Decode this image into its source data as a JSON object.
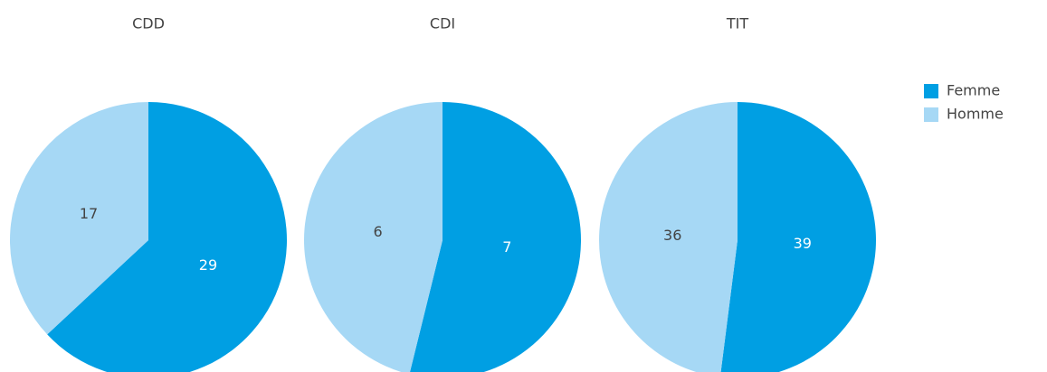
{
  "chart_data": [
    {
      "type": "pie",
      "title": "CDD",
      "categories": [
        "Femme",
        "Homme"
      ],
      "values": [
        29,
        17
      ],
      "colors": [
        "#009fe3",
        "#a6d8f5"
      ]
    },
    {
      "type": "pie",
      "title": "CDI",
      "categories": [
        "Femme",
        "Homme"
      ],
      "values": [
        7,
        6
      ],
      "colors": [
        "#009fe3",
        "#a6d8f5"
      ]
    },
    {
      "type": "pie",
      "title": "TIT",
      "categories": [
        "Femme",
        "Homme"
      ],
      "values": [
        39,
        36
      ],
      "colors": [
        "#009fe3",
        "#a6d8f5"
      ]
    }
  ]
}
